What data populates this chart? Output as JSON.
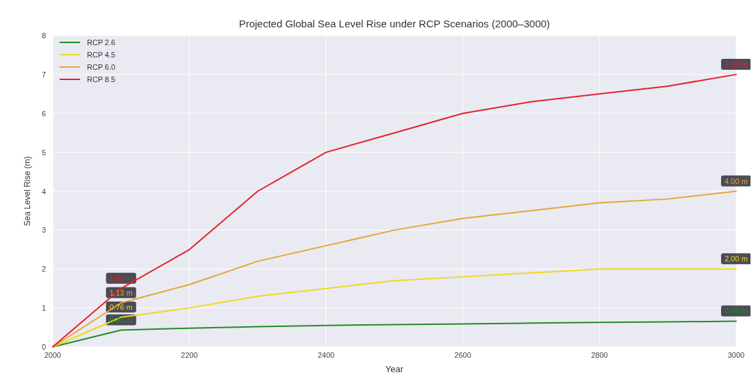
{
  "chart_data": {
    "type": "line",
    "title": "Projected Global Sea Level Rise under RCP Scenarios (2000–3000)",
    "xlabel": "Year",
    "ylabel": "Sea Level Rise (m)",
    "x": [
      2000,
      2100,
      2200,
      2300,
      2400,
      2500,
      2600,
      2700,
      2800,
      2900,
      3000
    ],
    "series": [
      {
        "name": "RCP 2.6",
        "color": "#228b22",
        "values": [
          0,
          0.43,
          0.48,
          0.52,
          0.55,
          0.57,
          0.59,
          0.61,
          0.63,
          0.64,
          0.66
        ],
        "value_labels": [
          null,
          "0.43 m",
          null,
          null,
          null,
          null,
          null,
          null,
          null,
          null,
          "0.66 m"
        ]
      },
      {
        "name": "RCP 4.5",
        "color": "#f2d81c",
        "values": [
          0,
          0.76,
          1.0,
          1.3,
          1.5,
          1.7,
          1.8,
          1.9,
          2.0,
          2.0,
          2.0
        ],
        "value_labels": [
          null,
          "0.76 m",
          null,
          null,
          null,
          null,
          null,
          null,
          null,
          null,
          "2.00 m"
        ]
      },
      {
        "name": "RCP 6.0",
        "color": "#e6a532",
        "values": [
          0,
          1.13,
          1.6,
          2.2,
          2.6,
          3.0,
          3.3,
          3.5,
          3.7,
          3.8,
          4.0
        ],
        "value_labels": [
          null,
          "1.13 m",
          null,
          null,
          null,
          null,
          null,
          null,
          null,
          null,
          "4.00 m"
        ]
      },
      {
        "name": "RCP 8.5",
        "color": "#e3202a",
        "values": [
          0,
          1.5,
          2.5,
          4.0,
          5.0,
          5.5,
          6.0,
          6.3,
          6.5,
          6.7,
          7.0
        ],
        "value_labels": [
          null,
          "1.50 m",
          null,
          null,
          null,
          null,
          null,
          null,
          null,
          null,
          "7.00 m"
        ]
      }
    ],
    "xlim": [
      2000,
      3000
    ],
    "xticks": [
      2000,
      2200,
      2400,
      2600,
      2800,
      3000
    ],
    "ylim": [
      0,
      8
    ],
    "yticks": [
      0,
      1,
      2,
      3,
      4,
      5,
      6,
      7,
      8
    ],
    "grid": true,
    "legend": "top left",
    "marker": "none",
    "line_style": "solid"
  }
}
